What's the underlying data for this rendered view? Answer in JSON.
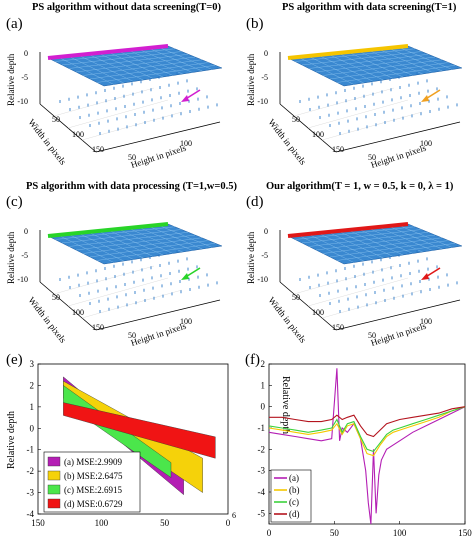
{
  "panels": [
    {
      "label": "(a)",
      "title": "PS algorithm without data screening(T=0)",
      "edge_color": "#d21fd0",
      "arrow_color": "#d21fd0"
    },
    {
      "label": "(b)",
      "title": "PS algorithm with data screening(T=1)",
      "edge_color": "#f5c400",
      "arrow_color": "#f0a020"
    },
    {
      "label": "(c)",
      "title": "PS algorithm with data processing (T=1,w=0.5)",
      "edge_color": "#28d428",
      "arrow_color": "#28d428"
    },
    {
      "label": "(d)",
      "title": "Our algorithm(T = 1,  w = 0.5, k = 0, λ = 1)",
      "edge_color": "#e01818",
      "arrow_color": "#e01818"
    }
  ],
  "surface_axes": {
    "zlabel": "Relative depth",
    "ylabel": "Width in pixels",
    "xlabel": "Height in pixels",
    "zticks": [
      "0",
      "-5",
      "-10"
    ],
    "yticks": [
      "50",
      "100",
      "150"
    ],
    "xticks": [
      "50",
      "100"
    ]
  },
  "panel_e_label": "(e)",
  "panel_f_label": "(f)",
  "chart_data": [
    {
      "type": "area",
      "ylabel": "Relative depth",
      "xlim": [
        150,
        0
      ],
      "ylim": [
        -4,
        3
      ],
      "xticks": [
        "150",
        "100",
        "50",
        "0"
      ],
      "x_extra_label": "6",
      "yticks": [
        "3",
        "2",
        "1",
        "0",
        "-1",
        "-2",
        "-3",
        "-4"
      ],
      "legend": [
        {
          "name": "(a) MSE:2.9909",
          "color": "#b41eb4"
        },
        {
          "name": "(b) MSE:2.6475",
          "color": "#f5d20a"
        },
        {
          "name": "(c) MSE:2.6915",
          "color": "#4be64b"
        },
        {
          "name": "(d) MSE:0.6729",
          "color": "#f01414"
        }
      ],
      "series": [
        {
          "name": "(a) MSE:2.9909",
          "color": "#b41eb4",
          "x": [
            130,
            35
          ],
          "top": [
            2.4,
            -2.3
          ],
          "bottom": [
            1.6,
            -3.1
          ]
        },
        {
          "name": "(b) MSE:2.6475",
          "color": "#f5d20a",
          "x": [
            130,
            20
          ],
          "top": [
            2.2,
            -1.4
          ],
          "bottom": [
            1.4,
            -3.0
          ]
        },
        {
          "name": "(c) MSE:2.6915",
          "color": "#4be64b",
          "x": [
            130,
            45
          ],
          "top": [
            2.0,
            -1.6
          ],
          "bottom": [
            1.2,
            -2.3
          ]
        },
        {
          "name": "(d) MSE:0.6729",
          "color": "#f01414",
          "x": [
            130,
            10
          ],
          "top": [
            1.2,
            -0.4
          ],
          "bottom": [
            0.6,
            -1.4
          ]
        }
      ]
    },
    {
      "type": "line",
      "ylabel": "Relative depth",
      "xlim": [
        0,
        150
      ],
      "ylim": [
        -5.5,
        2
      ],
      "xticks": [
        "0",
        "50",
        "100",
        "150"
      ],
      "yticks": [
        "2",
        "1",
        "0",
        "-1",
        "-2",
        "-3",
        "-4",
        "-5"
      ],
      "legend": [
        {
          "name": "(a)",
          "color": "#b41eb4"
        },
        {
          "name": "(b)",
          "color": "#f5c800"
        },
        {
          "name": "(c)",
          "color": "#3cd23c"
        },
        {
          "name": "(d)",
          "color": "#b4141e"
        }
      ],
      "series": [
        {
          "name": "(a)",
          "color": "#b41eb4",
          "x": [
            0,
            10,
            20,
            30,
            40,
            48,
            52,
            54,
            56,
            60,
            65,
            70,
            74,
            76,
            78,
            80,
            82,
            84,
            86,
            90,
            95,
            100,
            110,
            120,
            130,
            140,
            150
          ],
          "y": [
            -1.2,
            -1.3,
            -1.4,
            -1.5,
            -1.6,
            -1.5,
            1.8,
            -1.6,
            -1.0,
            -1.2,
            -0.8,
            -1.5,
            -3.0,
            -4.5,
            -5.5,
            -2.0,
            -5.0,
            -3.2,
            -2.5,
            -2.0,
            -1.8,
            -1.6,
            -1.2,
            -0.9,
            -0.6,
            -0.3,
            0.0
          ]
        },
        {
          "name": "(b)",
          "color": "#f5c800",
          "x": [
            0,
            10,
            20,
            30,
            40,
            48,
            52,
            56,
            60,
            65,
            70,
            75,
            80,
            85,
            90,
            95,
            100,
            110,
            120,
            130,
            140,
            150
          ],
          "y": [
            -1.0,
            -1.1,
            -1.2,
            -1.3,
            -1.2,
            -1.1,
            -0.8,
            -1.3,
            -0.9,
            -0.8,
            -1.5,
            -2.2,
            -2.3,
            -1.8,
            -1.4,
            -1.2,
            -1.1,
            -0.9,
            -0.7,
            -0.5,
            -0.2,
            0.0
          ]
        },
        {
          "name": "(c)",
          "color": "#3cd23c",
          "x": [
            0,
            10,
            20,
            30,
            40,
            48,
            52,
            56,
            60,
            65,
            70,
            75,
            80,
            85,
            90,
            95,
            100,
            110,
            120,
            130,
            140,
            150
          ],
          "y": [
            -0.9,
            -1.0,
            -1.1,
            -1.2,
            -1.1,
            -1.0,
            -0.6,
            -1.2,
            -0.8,
            -0.7,
            -1.4,
            -2.0,
            -2.1,
            -1.7,
            -1.3,
            -1.1,
            -1.0,
            -0.8,
            -0.6,
            -0.4,
            -0.2,
            0.0
          ]
        },
        {
          "name": "(d)",
          "color": "#b4141e",
          "x": [
            0,
            10,
            20,
            30,
            40,
            48,
            52,
            56,
            60,
            65,
            70,
            75,
            80,
            85,
            90,
            95,
            100,
            110,
            120,
            130,
            140,
            150
          ],
          "y": [
            -0.5,
            -0.5,
            -0.6,
            -0.7,
            -0.7,
            -0.6,
            -0.4,
            -0.6,
            -0.5,
            -0.4,
            -0.9,
            -1.3,
            -1.4,
            -1.1,
            -0.8,
            -0.7,
            -0.6,
            -0.5,
            -0.4,
            -0.3,
            -0.1,
            0.0
          ]
        }
      ]
    }
  ]
}
